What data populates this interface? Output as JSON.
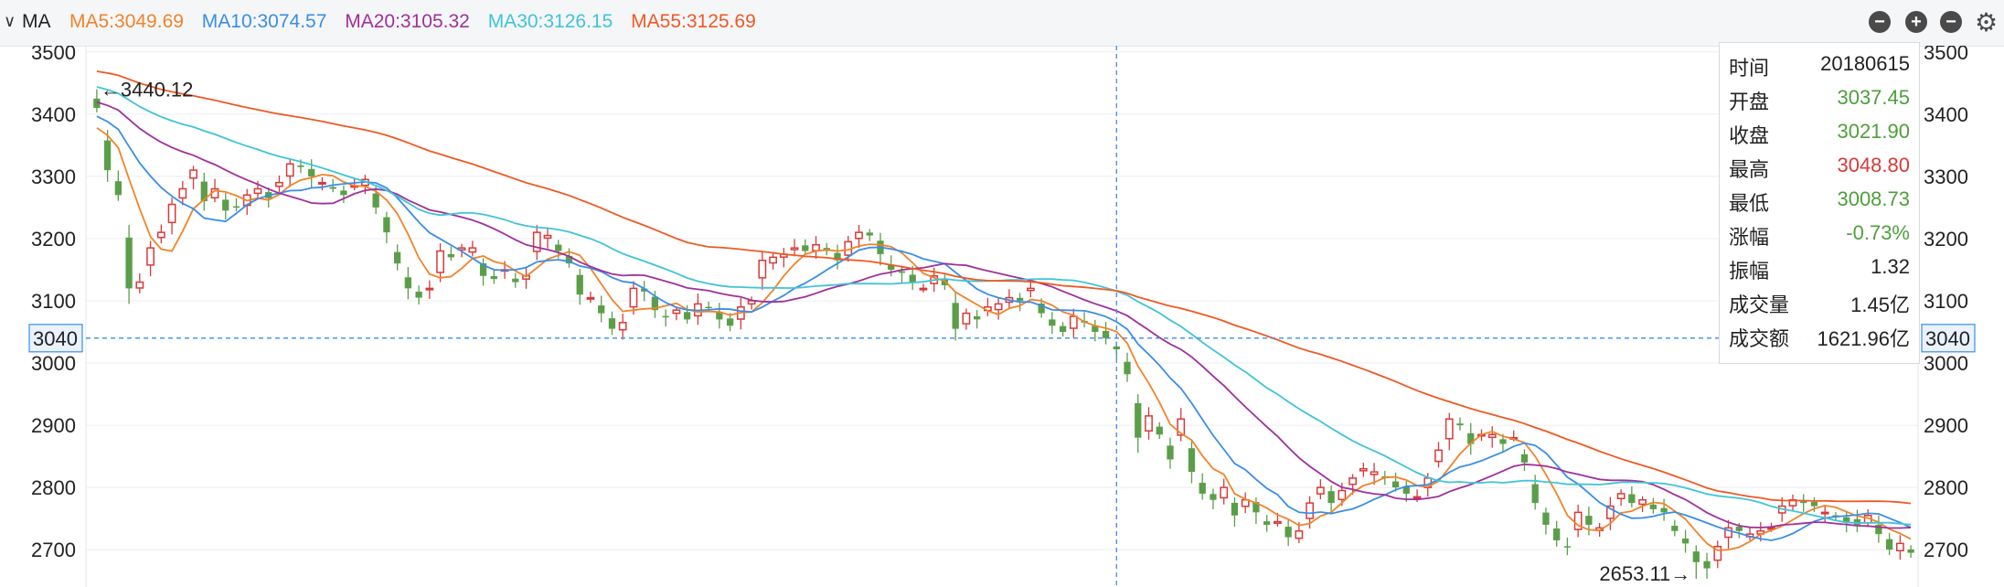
{
  "header": {
    "toggle_icon": "chevron-down-icon",
    "indicator": "MA",
    "ma_labels": [
      {
        "text": "MA5:3049.69",
        "color": "#f0842a"
      },
      {
        "text": "MA10:3074.57",
        "color": "#3a8ee6"
      },
      {
        "text": "MA20:3105.32",
        "color": "#a0309b"
      },
      {
        "text": "MA30:3126.15",
        "color": "#40c4d8"
      },
      {
        "text": "MA55:3125.69",
        "color": "#ee5a24"
      }
    ],
    "buttons": [
      "minus-circle-icon",
      "plus-circle-icon",
      "remove-circle-icon",
      "gear-icon"
    ]
  },
  "tooltip": {
    "rows": [
      {
        "label": "时间",
        "value": "20180615",
        "color": "#222222"
      },
      {
        "label": "开盘",
        "value": "3037.45",
        "color": "#4e9f3d"
      },
      {
        "label": "收盘",
        "value": "3021.90",
        "color": "#4e9f3d"
      },
      {
        "label": "最高",
        "value": "3048.80",
        "color": "#d73a3a"
      },
      {
        "label": "最低",
        "value": "3008.73",
        "color": "#4e9f3d"
      },
      {
        "label": "涨幅",
        "value": "-0.73%",
        "color": "#4e9f3d"
      },
      {
        "label": "振幅",
        "value": "1.32",
        "color": "#222222"
      },
      {
        "label": "成交量",
        "value": "1.45亿",
        "color": "#222222"
      },
      {
        "label": "成交额",
        "value": "1621.96亿",
        "color": "#222222"
      }
    ]
  },
  "chart_data": {
    "type": "candlestick",
    "ylim": [
      2640,
      3510
    ],
    "yticks": [
      "3500",
      "3400",
      "3300",
      "3200",
      "3100",
      "3000",
      "2900",
      "2800",
      "2700"
    ],
    "crosshair_value": "3040",
    "crosshair_date": "20180615",
    "max_label": "←3440.12",
    "max_value": 3440.12,
    "min_label": "2653.11→",
    "min_value": 2653.11,
    "up_color": "#d73a3a",
    "down_color": "#5b9e4a",
    "grid": true,
    "closes": [
      3410,
      3310,
      3270,
      3120,
      3130,
      3185,
      3210,
      3255,
      3280,
      3310,
      3260,
      3280,
      3245,
      3250,
      3270,
      3280,
      3265,
      3290,
      3320,
      3315,
      3300,
      3290,
      3280,
      3270,
      3285,
      3295,
      3250,
      3210,
      3160,
      3120,
      3105,
      3120,
      3180,
      3170,
      3185,
      3185,
      3140,
      3135,
      3150,
      3130,
      3140,
      3210,
      3205,
      3180,
      3160,
      3110,
      3105,
      3080,
      3055,
      3065,
      3120,
      3115,
      3085,
      3075,
      3085,
      3070,
      3095,
      3090,
      3070,
      3060,
      3090,
      3100,
      3165,
      3170,
      3175,
      3185,
      3180,
      3190,
      3180,
      3165,
      3195,
      3210,
      3205,
      3175,
      3150,
      3145,
      3130,
      3120,
      3140,
      3125,
      3055,
      3080,
      3070,
      3090,
      3095,
      3105,
      3100,
      3120,
      3080,
      3060,
      3050,
      3075,
      3065,
      3050,
      3040,
      3022,
      2982,
      2880,
      2915,
      2885,
      2845,
      2910,
      2825,
      2790,
      2780,
      2800,
      2755,
      2780,
      2760,
      2740,
      2745,
      2720,
      2730,
      2775,
      2800,
      2775,
      2795,
      2815,
      2830,
      2825,
      2815,
      2800,
      2790,
      2785,
      2815,
      2860,
      2910,
      2900,
      2870,
      2885,
      2885,
      2870,
      2880,
      2840,
      2775,
      2740,
      2715,
      2705,
      2760,
      2740,
      2735,
      2770,
      2790,
      2775,
      2780,
      2765,
      2760,
      2730,
      2710,
      2680,
      2670,
      2705,
      2735,
      2730,
      2725,
      2730,
      2735,
      2770,
      2780,
      2775,
      2770,
      2760,
      2755,
      2745,
      2740,
      2755,
      2725,
      2700,
      2710,
      2695
    ]
  }
}
